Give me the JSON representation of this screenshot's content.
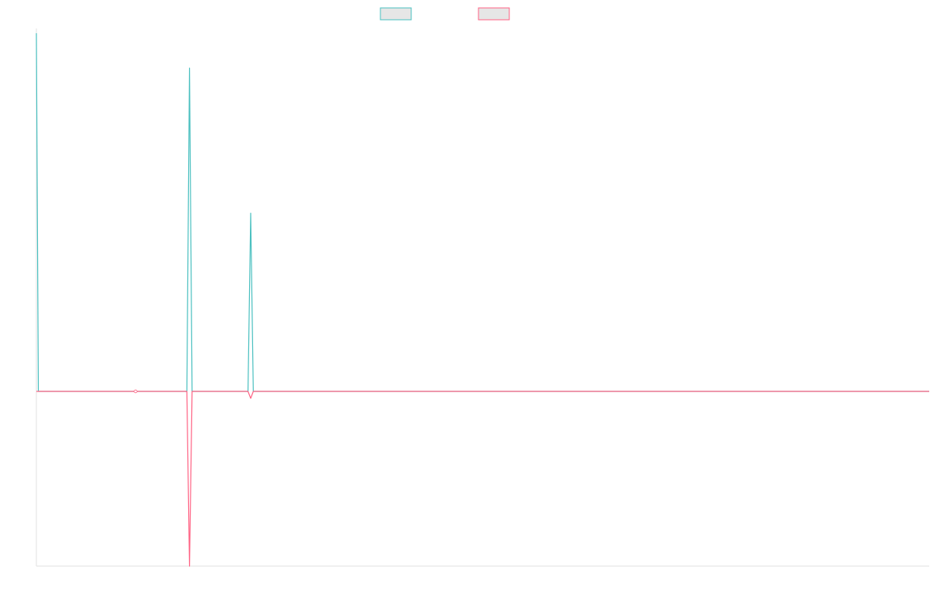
{
  "chart_data": {
    "type": "line",
    "title": "",
    "xlabel": "",
    "ylabel": "",
    "grid": false,
    "legend_placement": "top",
    "ylim": [
      -1,
      2
    ],
    "series": [
      {
        "name": "",
        "color": "#4bc0c0",
        "fill": "#e6e6e6",
        "points": [
          [
            0,
            2.05
          ],
          [
            0.06,
            0
          ],
          [
            3,
            0
          ],
          [
            4.55,
            0
          ],
          [
            4.63,
            1.85
          ],
          [
            4.71,
            0
          ],
          [
            6.4,
            0
          ],
          [
            6.48,
            1.02
          ],
          [
            6.56,
            0
          ],
          [
            27,
            0
          ]
        ]
      },
      {
        "name": "",
        "color": "#ff6384",
        "fill": "#e6e6e6",
        "points": [
          [
            0,
            0
          ],
          [
            3,
            0
          ],
          [
            4.55,
            0
          ],
          [
            4.63,
            -1
          ],
          [
            4.71,
            0
          ],
          [
            6.4,
            0
          ],
          [
            6.48,
            -0.04
          ],
          [
            6.56,
            0
          ],
          [
            27,
            0
          ]
        ]
      }
    ]
  }
}
